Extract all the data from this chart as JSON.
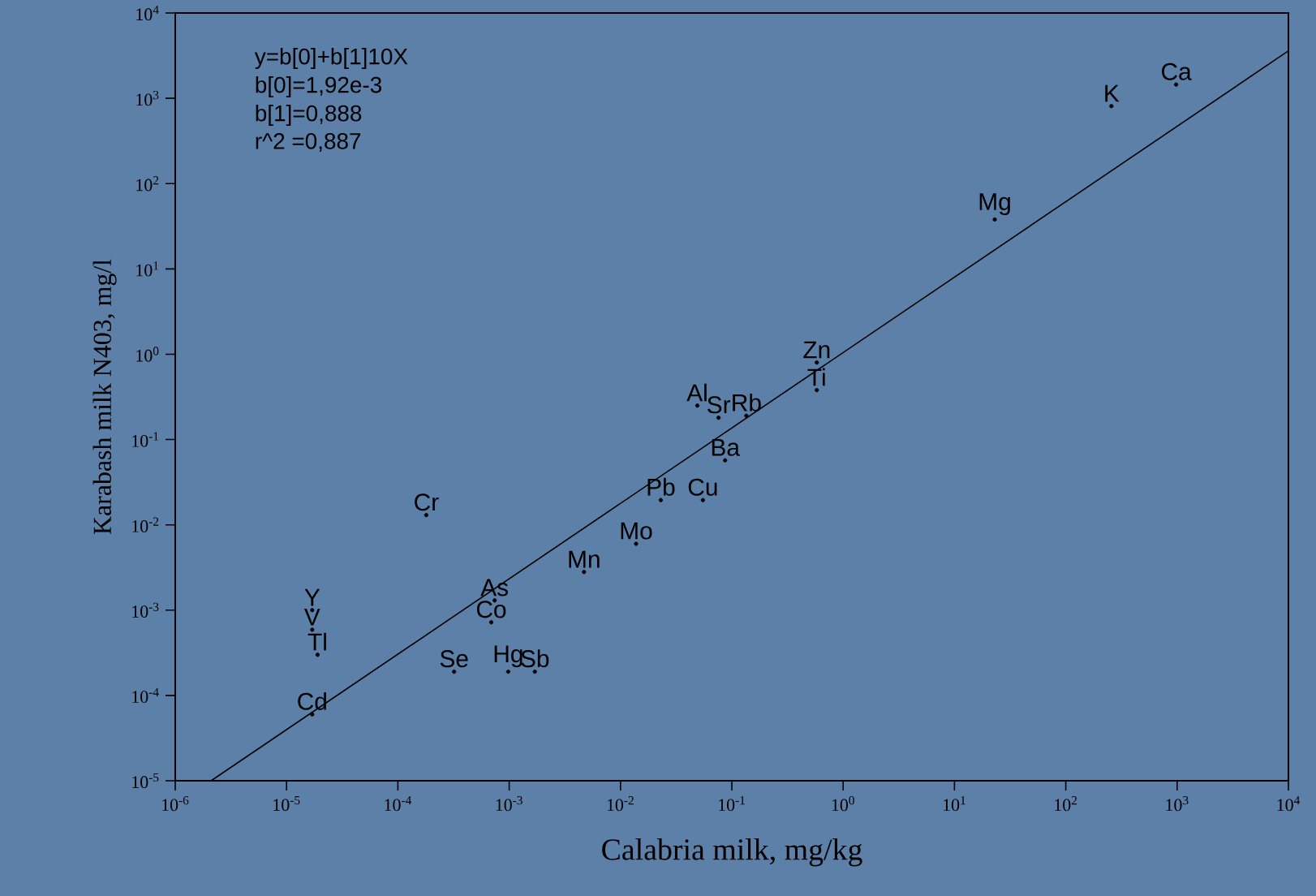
{
  "chart_data": {
    "type": "scatter",
    "xlabel": "Calabria milk, mg/kg",
    "ylabel": "Karabash milk N403, mg/l",
    "log": "xy",
    "grid": false,
    "xlim": [
      1e-06,
      10000.0
    ],
    "ylim": [
      1e-05,
      10000.0
    ],
    "xticks": [
      {
        "value": 1e-06,
        "label": "10$^{-6}$"
      },
      {
        "value": 1e-05,
        "label": "10$^{-5}$"
      },
      {
        "value": 0.0001,
        "label": "10$^{-4}$"
      },
      {
        "value": 0.001,
        "label": "10$^{-3}$"
      },
      {
        "value": 0.01,
        "label": "10$^{-2}$"
      },
      {
        "value": 0.1,
        "label": "10$^{-1}$"
      },
      {
        "value": 1,
        "label": "10$^{0}$"
      },
      {
        "value": 10,
        "label": "10$^{1}$"
      },
      {
        "value": 100,
        "label": "10$^{2}$"
      },
      {
        "value": 1000,
        "label": "10$^{3}$"
      },
      {
        "value": 10000,
        "label": "10$^{4}$"
      }
    ],
    "yticks": [
      {
        "value": 1e-05,
        "label": "10$^{-5}$"
      },
      {
        "value": 0.0001,
        "label": "10$^{-4}$"
      },
      {
        "value": 0.001,
        "label": "10$^{-3}$"
      },
      {
        "value": 0.01,
        "label": "10$^{-2}$"
      },
      {
        "value": 0.1,
        "label": "10$^{-1}$"
      },
      {
        "value": 1,
        "label": "10$^{0}$"
      },
      {
        "value": 10,
        "label": "10$^{1}$"
      },
      {
        "value": 100,
        "label": "10$^{2}$"
      },
      {
        "value": 1000,
        "label": "10$^{3}$"
      },
      {
        "value": 10000,
        "label": "10$^{4}$"
      }
    ],
    "series": [
      {
        "color": "#000000",
        "marker": "circle",
        "x": [
          0.58,
          0.58,
          0.049,
          0.076,
          0.135,
          0.087,
          0.023,
          0.055,
          0.0138,
          0.0047,
          0.00018,
          0.00074,
          0.00069,
          0.00032,
          0.00098,
          0.0017,
          1.7e-05,
          1.7e-05,
          1.9e-05,
          1.7e-05,
          257,
          980,
          23
        ],
        "values": [
          0.8,
          0.38,
          0.25,
          0.18,
          0.19,
          0.057,
          0.0195,
          0.0195,
          0.006,
          0.0028,
          0.013,
          0.0013,
          0.00072,
          0.00019,
          0.00019,
          0.00019,
          0.001,
          0.00059,
          0.0003,
          6e-05,
          810,
          1450,
          38
        ],
        "value_labels": [
          "Zn",
          "Ti",
          "Al",
          "Sr",
          "Rb",
          "Ba",
          "Pb",
          "Cu",
          "Mo",
          "Mn",
          "Cr",
          "As",
          "Co",
          "Se",
          "Hg",
          "Sb",
          "Y",
          "V",
          "Tl",
          "Cd",
          "K",
          "Ca",
          "Mg"
        ]
      },
      {
        "type": "line",
        "color": "#000000",
        "x": [
          2.1e-06,
          10000.0
        ],
        "values": [
          1e-05,
          3600
        ]
      }
    ],
    "annotations": [
      "y=b[0]+b[1]10X",
      "b[0]=1,92e-3",
      "b[1]=0,888",
      "r^2 =0,887"
    ]
  }
}
